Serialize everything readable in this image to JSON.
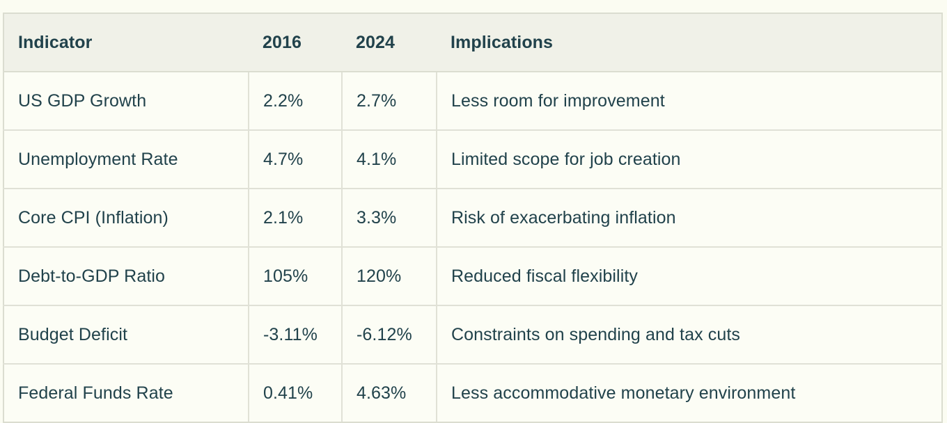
{
  "colors": {
    "page_background": "#fbfcf2",
    "header_background": "#f0f1e8",
    "cell_background": "#fcfdf5",
    "border": "#dbddd0",
    "text": "#21424b"
  },
  "table": {
    "columns": [
      {
        "key": "indicator",
        "label": "Indicator"
      },
      {
        "key": "y2016",
        "label": "2016"
      },
      {
        "key": "y2024",
        "label": "2024"
      },
      {
        "key": "implications",
        "label": "Implications"
      }
    ],
    "rows": [
      {
        "indicator": "US GDP Growth",
        "y2016": "2.2%",
        "y2024": "2.7%",
        "implications": "Less room for improvement"
      },
      {
        "indicator": "Unemployment Rate",
        "y2016": "4.7%",
        "y2024": "4.1%",
        "implications": "Limited scope for job creation"
      },
      {
        "indicator": "Core CPI (Inflation)",
        "y2016": "2.1%",
        "y2024": "3.3%",
        "implications": "Risk of exacerbating inflation"
      },
      {
        "indicator": "Debt-to-GDP Ratio",
        "y2016": "105%",
        "y2024": "120%",
        "implications": "Reduced fiscal flexibility"
      },
      {
        "indicator": "Budget Deficit",
        "y2016": "-3.11%",
        "y2024": "-6.12%",
        "implications": "Constraints on spending and tax cuts"
      },
      {
        "indicator": "Federal Funds Rate",
        "y2016": "0.41%",
        "y2024": "4.63%",
        "implications": "Less accommodative monetary environment"
      }
    ]
  },
  "chart_data": {
    "type": "table",
    "title": "",
    "columns": [
      "Indicator",
      "2016",
      "2024",
      "Implications"
    ],
    "rows": [
      [
        "US GDP Growth",
        "2.2%",
        "2.7%",
        "Less room for improvement"
      ],
      [
        "Unemployment Rate",
        "4.7%",
        "4.1%",
        "Limited scope for job creation"
      ],
      [
        "Core CPI (Inflation)",
        "2.1%",
        "3.3%",
        "Risk of exacerbating inflation"
      ],
      [
        "Debt-to-GDP Ratio",
        "105%",
        "120%",
        "Reduced fiscal flexibility"
      ],
      [
        "Budget Deficit",
        "-3.11%",
        "-6.12%",
        "Constraints on spending and tax cuts"
      ],
      [
        "Federal Funds Rate",
        "0.41%",
        "4.63%",
        "Less accommodative monetary environment"
      ]
    ],
    "series": [
      {
        "name": "2016",
        "categories": [
          "US GDP Growth",
          "Unemployment Rate",
          "Core CPI (Inflation)",
          "Debt-to-GDP Ratio",
          "Budget Deficit",
          "Federal Funds Rate"
        ],
        "values": [
          2.2,
          4.7,
          2.1,
          105,
          -3.11,
          0.41
        ]
      },
      {
        "name": "2024",
        "categories": [
          "US GDP Growth",
          "Unemployment Rate",
          "Core CPI (Inflation)",
          "Debt-to-GDP Ratio",
          "Budget Deficit",
          "Federal Funds Rate"
        ],
        "values": [
          2.7,
          4.1,
          3.3,
          120,
          -6.12,
          4.63
        ]
      }
    ],
    "units": "percent"
  }
}
